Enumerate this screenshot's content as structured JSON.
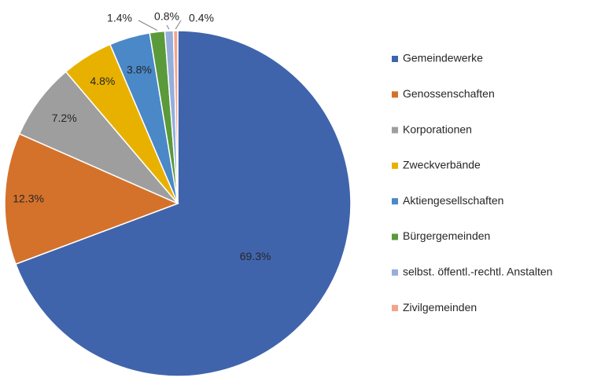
{
  "chart_data": {
    "type": "pie",
    "title": "",
    "legend_position": "right",
    "categories": [
      "Gemeindewerke",
      "Genossenschaften",
      "Korporationen",
      "Zweckverbände",
      "Aktiengesellschaften",
      "Bürgergemeinden",
      "selbst. öffentl.-rechtl. Anstalten",
      "Zivilgemeinden"
    ],
    "values": [
      69.3,
      12.3,
      7.2,
      4.8,
      3.8,
      1.4,
      0.8,
      0.4
    ],
    "labels": [
      "69.3%",
      "12.3%",
      "7.2%",
      "4.8%",
      "3.8%",
      "1.4%",
      "0.8%",
      "0.4%"
    ],
    "colors": [
      "#4064ac",
      "#d4722c",
      "#9e9e9e",
      "#e8b100",
      "#4a88c8",
      "#5a9a3a",
      "#96aedc",
      "#f2a48c"
    ]
  }
}
